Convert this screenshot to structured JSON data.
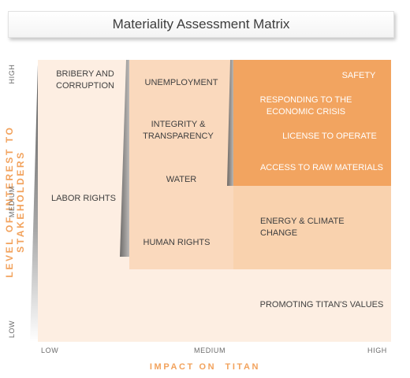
{
  "title": "Materiality Assessment Matrix",
  "axes": {
    "y_label": "LEVEL OF INTEREST TO STAKEHOLDERS",
    "x_label": "IMPACT ON  TITAN",
    "y_ticks": {
      "high": "HIGH",
      "medium": "MEDIUM",
      "low": "LOW"
    },
    "x_ticks": {
      "low": "LOW",
      "medium": "MEDIUM",
      "high": "HIGH"
    }
  },
  "colors": {
    "lightest": "#fdeee2",
    "light": "#fbdfc6",
    "medium": "#f8cfa8",
    "dark": "#f0a05a",
    "axis_label": "#f2a25c"
  },
  "issues": {
    "bribery": "BRIBERY AND\nCORRUPTION",
    "labor_rights": "LABOR RIGHTS",
    "unemployment": "UNEMPLOYMENT",
    "integrity": "INTEGRITY &\nTRANSPARENCY",
    "water": "WATER",
    "human_rights": "HUMAN RIGHTS",
    "safety": "SAFETY",
    "economic_crisis": "RESPONDING TO THE\nECONOMIC CRISIS",
    "license": "LICENSE TO OPERATE",
    "raw_materials": "ACCESS TO RAW MATERIALS",
    "energy": "ENERGY & CLIMATE\nCHANGE",
    "titan_values": "PROMOTING TITAN'S VALUES"
  }
}
